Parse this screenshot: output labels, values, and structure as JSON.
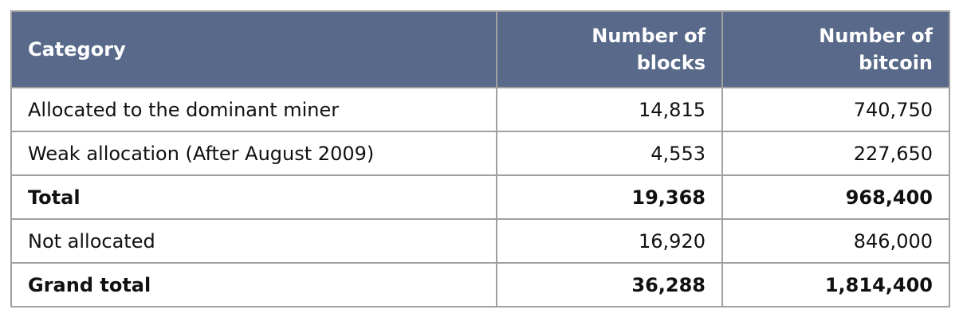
{
  "table": {
    "header": [
      "Category",
      "Number of blocks",
      "Number of bitcoin"
    ],
    "rows": [
      [
        "Allocated to the dominant miner",
        "14,815",
        "740,750"
      ],
      [
        "Weak allocation (After August 2009)",
        "4,553",
        "227,650"
      ],
      [
        "Total",
        "19,368",
        "968,400"
      ],
      [
        "Not allocated",
        "16,920",
        "846,000"
      ],
      [
        "Grand total",
        "36,288",
        "1,814,400"
      ]
    ]
  }
}
